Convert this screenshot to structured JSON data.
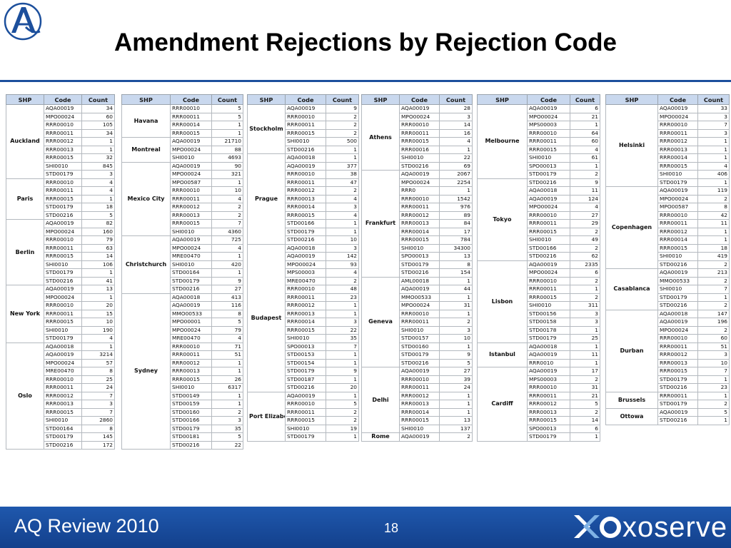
{
  "title": "Amendment Rejections by Rejection Code",
  "footer": {
    "left": "AQ Review 2010",
    "page": "18",
    "brand": "xoserve"
  },
  "colors": {
    "footer_bar": "#1a4c9c",
    "header_fill": "#c9d8ee",
    "logo_blue": "#1c4f9c"
  },
  "headers": {
    "shp": "SHP",
    "code": "Code",
    "count": "Count"
  },
  "columns": [
    [
      {
        "name": "Auckland",
        "rows": [
          [
            "AQA00019",
            "34"
          ],
          [
            "MPO00024",
            "60"
          ],
          [
            "RRR00010",
            "105"
          ],
          [
            "RRR00011",
            "34"
          ],
          [
            "RRR00012",
            "1"
          ],
          [
            "RRR00013",
            "1"
          ],
          [
            "RRR00015",
            "32"
          ],
          [
            "SHI0010",
            "845"
          ],
          [
            "STD00179",
            "3"
          ]
        ]
      },
      {
        "name": "Paris",
        "rows": [
          [
            "RRR00010",
            "4"
          ],
          [
            "RRR00011",
            "4"
          ],
          [
            "RRR00015",
            "1"
          ],
          [
            "STD00179",
            "18"
          ],
          [
            "STD00216",
            "5"
          ]
        ]
      },
      {
        "name": "Berlin",
        "rows": [
          [
            "AQA00019",
            "82"
          ],
          [
            "MPO00024",
            "160"
          ],
          [
            "RRR00010",
            "79"
          ],
          [
            "RRR00011",
            "63"
          ],
          [
            "RRR00015",
            "14"
          ],
          [
            "SHI0010",
            "106"
          ],
          [
            "STD00179",
            "1"
          ],
          [
            "STD00216",
            "41"
          ]
        ]
      },
      {
        "name": "New York",
        "rows": [
          [
            "AQA00019",
            "13"
          ],
          [
            "MPO00024",
            "1"
          ],
          [
            "RRR00010",
            "20"
          ],
          [
            "RRR00011",
            "15"
          ],
          [
            "RRR00015",
            "10"
          ],
          [
            "SHI0010",
            "190"
          ],
          [
            "STD00179",
            "4"
          ]
        ]
      },
      {
        "name": "Oslo",
        "rows": [
          [
            "AQA00018",
            "1"
          ],
          [
            "AQA00019",
            "3214"
          ],
          [
            "MPO00024",
            "57"
          ],
          [
            "MRE00470",
            "8"
          ],
          [
            "RRR00010",
            "25"
          ],
          [
            "RRR00011",
            "24"
          ],
          [
            "RRR00012",
            "7"
          ],
          [
            "RRR00013",
            "3"
          ],
          [
            "RRR00015",
            "7"
          ],
          [
            "SHI0010",
            "2860"
          ],
          [
            "STD00164",
            "8"
          ],
          [
            "STD00179",
            "145"
          ],
          [
            "STD00216",
            "172"
          ]
        ]
      }
    ],
    [
      {
        "name": "Havana",
        "rows": [
          [
            "RRR00010",
            "5"
          ],
          [
            "RRR00011",
            "5"
          ],
          [
            "RRR00014",
            "1"
          ],
          [
            "RRR00015",
            "1"
          ]
        ]
      },
      {
        "name": "Montreal",
        "rows": [
          [
            "AQA00019",
            "21710"
          ],
          [
            "MPO00024",
            "88"
          ],
          [
            "SHI0010",
            "4693"
          ]
        ]
      },
      {
        "name": "Mexico City",
        "rows": [
          [
            "AQA00019",
            "90"
          ],
          [
            "MPO00024",
            "321"
          ],
          [
            "MPO00587",
            "1"
          ],
          [
            "RRR00010",
            "10"
          ],
          [
            "RRR00011",
            "4"
          ],
          [
            "RRR00012",
            "2"
          ],
          [
            "RRR00013",
            "2"
          ],
          [
            "RRR00015",
            "7"
          ],
          [
            "SHI0010",
            "4360"
          ]
        ]
      },
      {
        "name": "Christchurch",
        "rows": [
          [
            "AQA00019",
            "725"
          ],
          [
            "MPO00024",
            "4"
          ],
          [
            "MRE00470",
            "1"
          ],
          [
            "SHI0010",
            "420"
          ],
          [
            "STD00164",
            "1"
          ],
          [
            "STD00179",
            "9"
          ],
          [
            "STD00216",
            "27"
          ]
        ]
      },
      {
        "name": "Sydney",
        "rows": [
          [
            "AQA00018",
            "413"
          ],
          [
            "AQA00019",
            "116"
          ],
          [
            "MMO00533",
            "8"
          ],
          [
            "MPO00001",
            "5"
          ],
          [
            "MPO00024",
            "79"
          ],
          [
            "MRE00470",
            "4"
          ],
          [
            "RRR00010",
            "71"
          ],
          [
            "RRR00011",
            "51"
          ],
          [
            "RRR00012",
            "1"
          ],
          [
            "RRR00013",
            "1"
          ],
          [
            "RRR00015",
            "26"
          ],
          [
            "SHI0010",
            "6317"
          ],
          [
            "STD00149",
            "1"
          ],
          [
            "STD00159",
            "1"
          ],
          [
            "STD00160",
            "2"
          ],
          [
            "STD00166",
            "3"
          ],
          [
            "STD00179",
            "35"
          ],
          [
            "STD00181",
            "5"
          ],
          [
            "STD00216",
            "22"
          ]
        ]
      }
    ],
    [
      {
        "name": "Stockholm",
        "rows": [
          [
            "AQA00019",
            "9"
          ],
          [
            "RRR00010",
            "2"
          ],
          [
            "RRR00011",
            "2"
          ],
          [
            "RRR00015",
            "2"
          ],
          [
            "SHI0010",
            "500"
          ],
          [
            "STD00216",
            "1"
          ]
        ]
      },
      {
        "name": "Prague",
        "rows": [
          [
            "AQA00018",
            "1"
          ],
          [
            "AQA00019",
            "377"
          ],
          [
            "RRR00010",
            "38"
          ],
          [
            "RRR00011",
            "47"
          ],
          [
            "RRR00012",
            "2"
          ],
          [
            "RRR00013",
            "4"
          ],
          [
            "RRR00014",
            "3"
          ],
          [
            "RRR00015",
            "4"
          ],
          [
            "STD00166",
            "1"
          ],
          [
            "STD00179",
            "1"
          ],
          [
            "STD00216",
            "10"
          ]
        ]
      },
      {
        "name": "Budapest",
        "rows": [
          [
            "AQA00018",
            "3"
          ],
          [
            "AQA00019",
            "142"
          ],
          [
            "MPO00024",
            "93"
          ],
          [
            "MPS00003",
            "4"
          ],
          [
            "MRE00470",
            "2"
          ],
          [
            "RRR00010",
            "48"
          ],
          [
            "RRR00011",
            "23"
          ],
          [
            "RRR00012",
            "1"
          ],
          [
            "RRR00013",
            "1"
          ],
          [
            "RRR00014",
            "3"
          ],
          [
            "RRR00015",
            "22"
          ],
          [
            "SHI0010",
            "35"
          ],
          [
            "SPO00013",
            "7"
          ],
          [
            "STD00153",
            "1"
          ],
          [
            "STD00154",
            "1"
          ],
          [
            "STD00179",
            "9"
          ],
          [
            "STD00187",
            "1"
          ],
          [
            "STD00216",
            "20"
          ]
        ]
      },
      {
        "name": "Port Elizabeth",
        "rows": [
          [
            "AQA00019",
            "1"
          ],
          [
            "RRR00010",
            "5"
          ],
          [
            "RRR00011",
            "2"
          ],
          [
            "RRR00015",
            "2"
          ],
          [
            "SHI0010",
            "19"
          ],
          [
            "STD00179",
            "1"
          ]
        ]
      }
    ],
    [
      {
        "name": "Athens",
        "rows": [
          [
            "AQA00019",
            "28"
          ],
          [
            "MPO00024",
            "3"
          ],
          [
            "RRR00010",
            "14"
          ],
          [
            "RRR00011",
            "16"
          ],
          [
            "RRR00015",
            "4"
          ],
          [
            "RRR00016",
            "1"
          ],
          [
            "SHI0010",
            "22"
          ],
          [
            "STD00216",
            "69"
          ]
        ]
      },
      {
        "name": "Frankfurt",
        "rows": [
          [
            "AQA00019",
            "2067"
          ],
          [
            "MPO00024",
            "2254"
          ],
          [
            "RRR0",
            "1"
          ],
          [
            "RRR00010",
            "1542"
          ],
          [
            "RRR00011",
            "976"
          ],
          [
            "RRR00012",
            "89"
          ],
          [
            "RRR00013",
            "84"
          ],
          [
            "RRR00014",
            "17"
          ],
          [
            "RRR00015",
            "784"
          ],
          [
            "SHI0010",
            "34300"
          ],
          [
            "SPO00013",
            "13"
          ],
          [
            "STD00179",
            "8"
          ],
          [
            "STD00216",
            "154"
          ]
        ]
      },
      {
        "name": "Geneva",
        "rows": [
          [
            "AML00018",
            "1"
          ],
          [
            "AQA00019",
            "44"
          ],
          [
            "MMO00533",
            "1"
          ],
          [
            "MPO00024",
            "31"
          ],
          [
            "RRR00010",
            "1"
          ],
          [
            "RRR00011",
            "2"
          ],
          [
            "SHI0010",
            "3"
          ],
          [
            "STD00157",
            "10"
          ],
          [
            "STD00160",
            "1"
          ],
          [
            "STD00179",
            "9"
          ],
          [
            "STD00216",
            "5"
          ]
        ]
      },
      {
        "name": "Delhi",
        "rows": [
          [
            "AQA00019",
            "27"
          ],
          [
            "RRR00010",
            "39"
          ],
          [
            "RRR00011",
            "24"
          ],
          [
            "RRR00012",
            "1"
          ],
          [
            "RRR00013",
            "1"
          ],
          [
            "RRR00014",
            "1"
          ],
          [
            "RRR00015",
            "13"
          ],
          [
            "SHI0010",
            "137"
          ]
        ]
      },
      {
        "name": "Rome",
        "rows": [
          [
            "AQA00019",
            "2"
          ]
        ]
      }
    ],
    [
      {
        "name": "Melbourne",
        "rows": [
          [
            "AQA00019",
            "6"
          ],
          [
            "MPO00024",
            "21"
          ],
          [
            "MPS00003",
            "1"
          ],
          [
            "RRR00010",
            "64"
          ],
          [
            "RRR00011",
            "60"
          ],
          [
            "RRR00015",
            "4"
          ],
          [
            "SHI0010",
            "61"
          ],
          [
            "SPO00013",
            "1"
          ],
          [
            "STD00179",
            "2"
          ]
        ]
      },
      {
        "name": "Tokyo",
        "rows": [
          [
            "STD00216",
            "9"
          ],
          [
            "AQA00018",
            "11"
          ],
          [
            "AQA00019",
            "124"
          ],
          [
            "MPO00024",
            "4"
          ],
          [
            "RRR00010",
            "27"
          ],
          [
            "RRR00011",
            "29"
          ],
          [
            "RRR00015",
            "2"
          ],
          [
            "SHI0010",
            "49"
          ],
          [
            "STD00166",
            "2"
          ],
          [
            "STD00216",
            "62"
          ]
        ]
      },
      {
        "name": "Lisbon",
        "rows": [
          [
            "AQA00019",
            "2335"
          ],
          [
            "MPO00024",
            "6"
          ],
          [
            "RRR00010",
            "2"
          ],
          [
            "RRR00011",
            "1"
          ],
          [
            "RRR00015",
            "2"
          ],
          [
            "SHI0010",
            "311"
          ],
          [
            "STD00156",
            "3"
          ],
          [
            "STD00158",
            "3"
          ],
          [
            "STD00178",
            "1"
          ],
          [
            "STD00179",
            "25"
          ]
        ]
      },
      {
        "name": "Istanbul",
        "rows": [
          [
            "AQA00018",
            "1"
          ],
          [
            "AQA00019",
            "11"
          ],
          [
            "RRR0010",
            "1"
          ]
        ]
      },
      {
        "name": "Cardiff",
        "rows": [
          [
            "AQA00019",
            "17"
          ],
          [
            "MPS00003",
            "2"
          ],
          [
            "RRR00010",
            "31"
          ],
          [
            "RRR00011",
            "21"
          ],
          [
            "RRR00012",
            "5"
          ],
          [
            "RRR00013",
            "2"
          ],
          [
            "RRR00015",
            "14"
          ],
          [
            "SPO00013",
            "6"
          ],
          [
            "STD00179",
            "1"
          ]
        ]
      }
    ],
    [
      {
        "name": "Helsinki",
        "rows": [
          [
            "AQA00019",
            "33"
          ],
          [
            "MPO00024",
            "3"
          ],
          [
            "RRR00010",
            "7"
          ],
          [
            "RRR00011",
            "3"
          ],
          [
            "RRR00012",
            "1"
          ],
          [
            "RRR00013",
            "1"
          ],
          [
            "RRR00014",
            "1"
          ],
          [
            "RRR00015",
            "4"
          ],
          [
            "SHI0010",
            "406"
          ],
          [
            "STD00179",
            "1"
          ]
        ]
      },
      {
        "name": "Copenhagen",
        "rows": [
          [
            "AQA00019",
            "119"
          ],
          [
            "MPO00024",
            "2"
          ],
          [
            "MPO00587",
            "8"
          ],
          [
            "RRR00010",
            "42"
          ],
          [
            "RRR00011",
            "11"
          ],
          [
            "RRR00012",
            "1"
          ],
          [
            "RRR00014",
            "1"
          ],
          [
            "RRR00015",
            "18"
          ],
          [
            "SHI0010",
            "419"
          ],
          [
            "STD00216",
            "2"
          ]
        ]
      },
      {
        "name": "Casablanca",
        "rows": [
          [
            "AQA00019",
            "213"
          ],
          [
            "MMO00533",
            "2"
          ],
          [
            "SHI0010",
            "7"
          ],
          [
            "STD00179",
            "1"
          ],
          [
            "STD00216",
            "2"
          ]
        ]
      },
      {
        "name": "Durban",
        "rows": [
          [
            "AQA00018",
            "147"
          ],
          [
            "AQA00019",
            "196"
          ],
          [
            "MPO00024",
            "2"
          ],
          [
            "RRR00010",
            "60"
          ],
          [
            "RRR00011",
            "51"
          ],
          [
            "RRR00012",
            "3"
          ],
          [
            "RRR00013",
            "10"
          ],
          [
            "RRR00015",
            "7"
          ],
          [
            "STD00179",
            "1"
          ],
          [
            "STD00216",
            "23"
          ]
        ]
      },
      {
        "name": "Brussels",
        "rows": [
          [
            "RRR00011",
            "1"
          ],
          [
            "STD00179",
            "2"
          ]
        ]
      },
      {
        "name": "Ottowa",
        "rows": [
          [
            "AQA00019",
            "5"
          ],
          [
            "STD00216",
            "1"
          ]
        ]
      }
    ]
  ]
}
